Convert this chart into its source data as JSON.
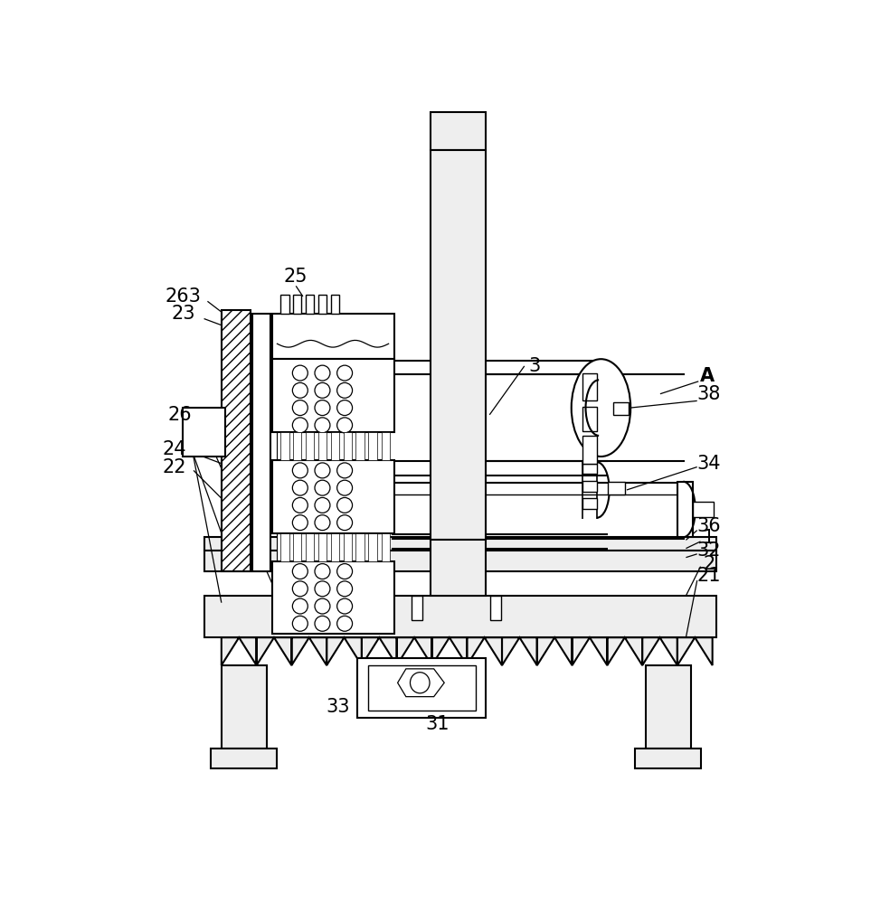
{
  "bg_color": "#ffffff",
  "lc": "#000000",
  "figsize": [
    9.84,
    10.0
  ],
  "dpi": 100
}
